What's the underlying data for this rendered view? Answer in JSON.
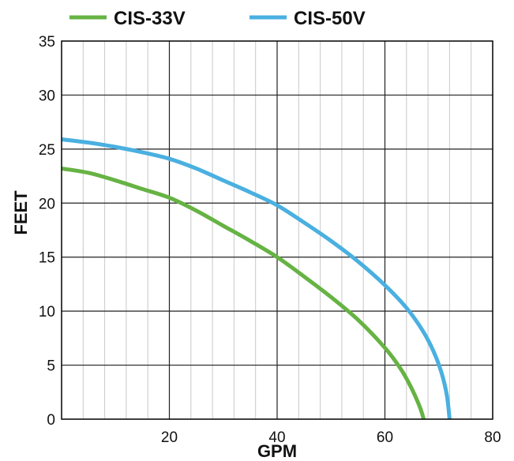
{
  "chart_data": {
    "type": "line",
    "title": "",
    "xlabel": "GPM",
    "ylabel": "FEET",
    "xlim": [
      0,
      80
    ],
    "ylim": [
      0,
      35
    ],
    "xticks": [
      20,
      40,
      60,
      80
    ],
    "yticks": [
      0,
      5,
      10,
      15,
      20,
      25,
      30,
      35
    ],
    "grid": true,
    "legend_position": "top",
    "series": [
      {
        "name": "CIS-33V",
        "color": "#66b344",
        "x": [
          0,
          5,
          10,
          15,
          20,
          25,
          30,
          35,
          40,
          45,
          50,
          55,
          60,
          63,
          65,
          66.5,
          67.2
        ],
        "y": [
          23.2,
          22.8,
          22.1,
          21.3,
          20.5,
          19.3,
          17.9,
          16.5,
          15.0,
          13.2,
          11.3,
          9.2,
          6.6,
          4.6,
          2.8,
          1.1,
          0
        ]
      },
      {
        "name": "CIS-50V",
        "color": "#4ab0e0",
        "x": [
          0,
          5,
          10,
          15,
          20,
          25,
          30,
          35,
          40,
          45,
          50,
          55,
          60,
          64,
          67,
          69,
          70.5,
          71.5,
          72
        ],
        "y": [
          25.9,
          25.6,
          25.2,
          24.7,
          24.1,
          23.2,
          22.1,
          21.0,
          19.8,
          18.2,
          16.5,
          14.6,
          12.4,
          10.3,
          8.2,
          6.3,
          4.3,
          2.2,
          0
        ]
      }
    ]
  }
}
